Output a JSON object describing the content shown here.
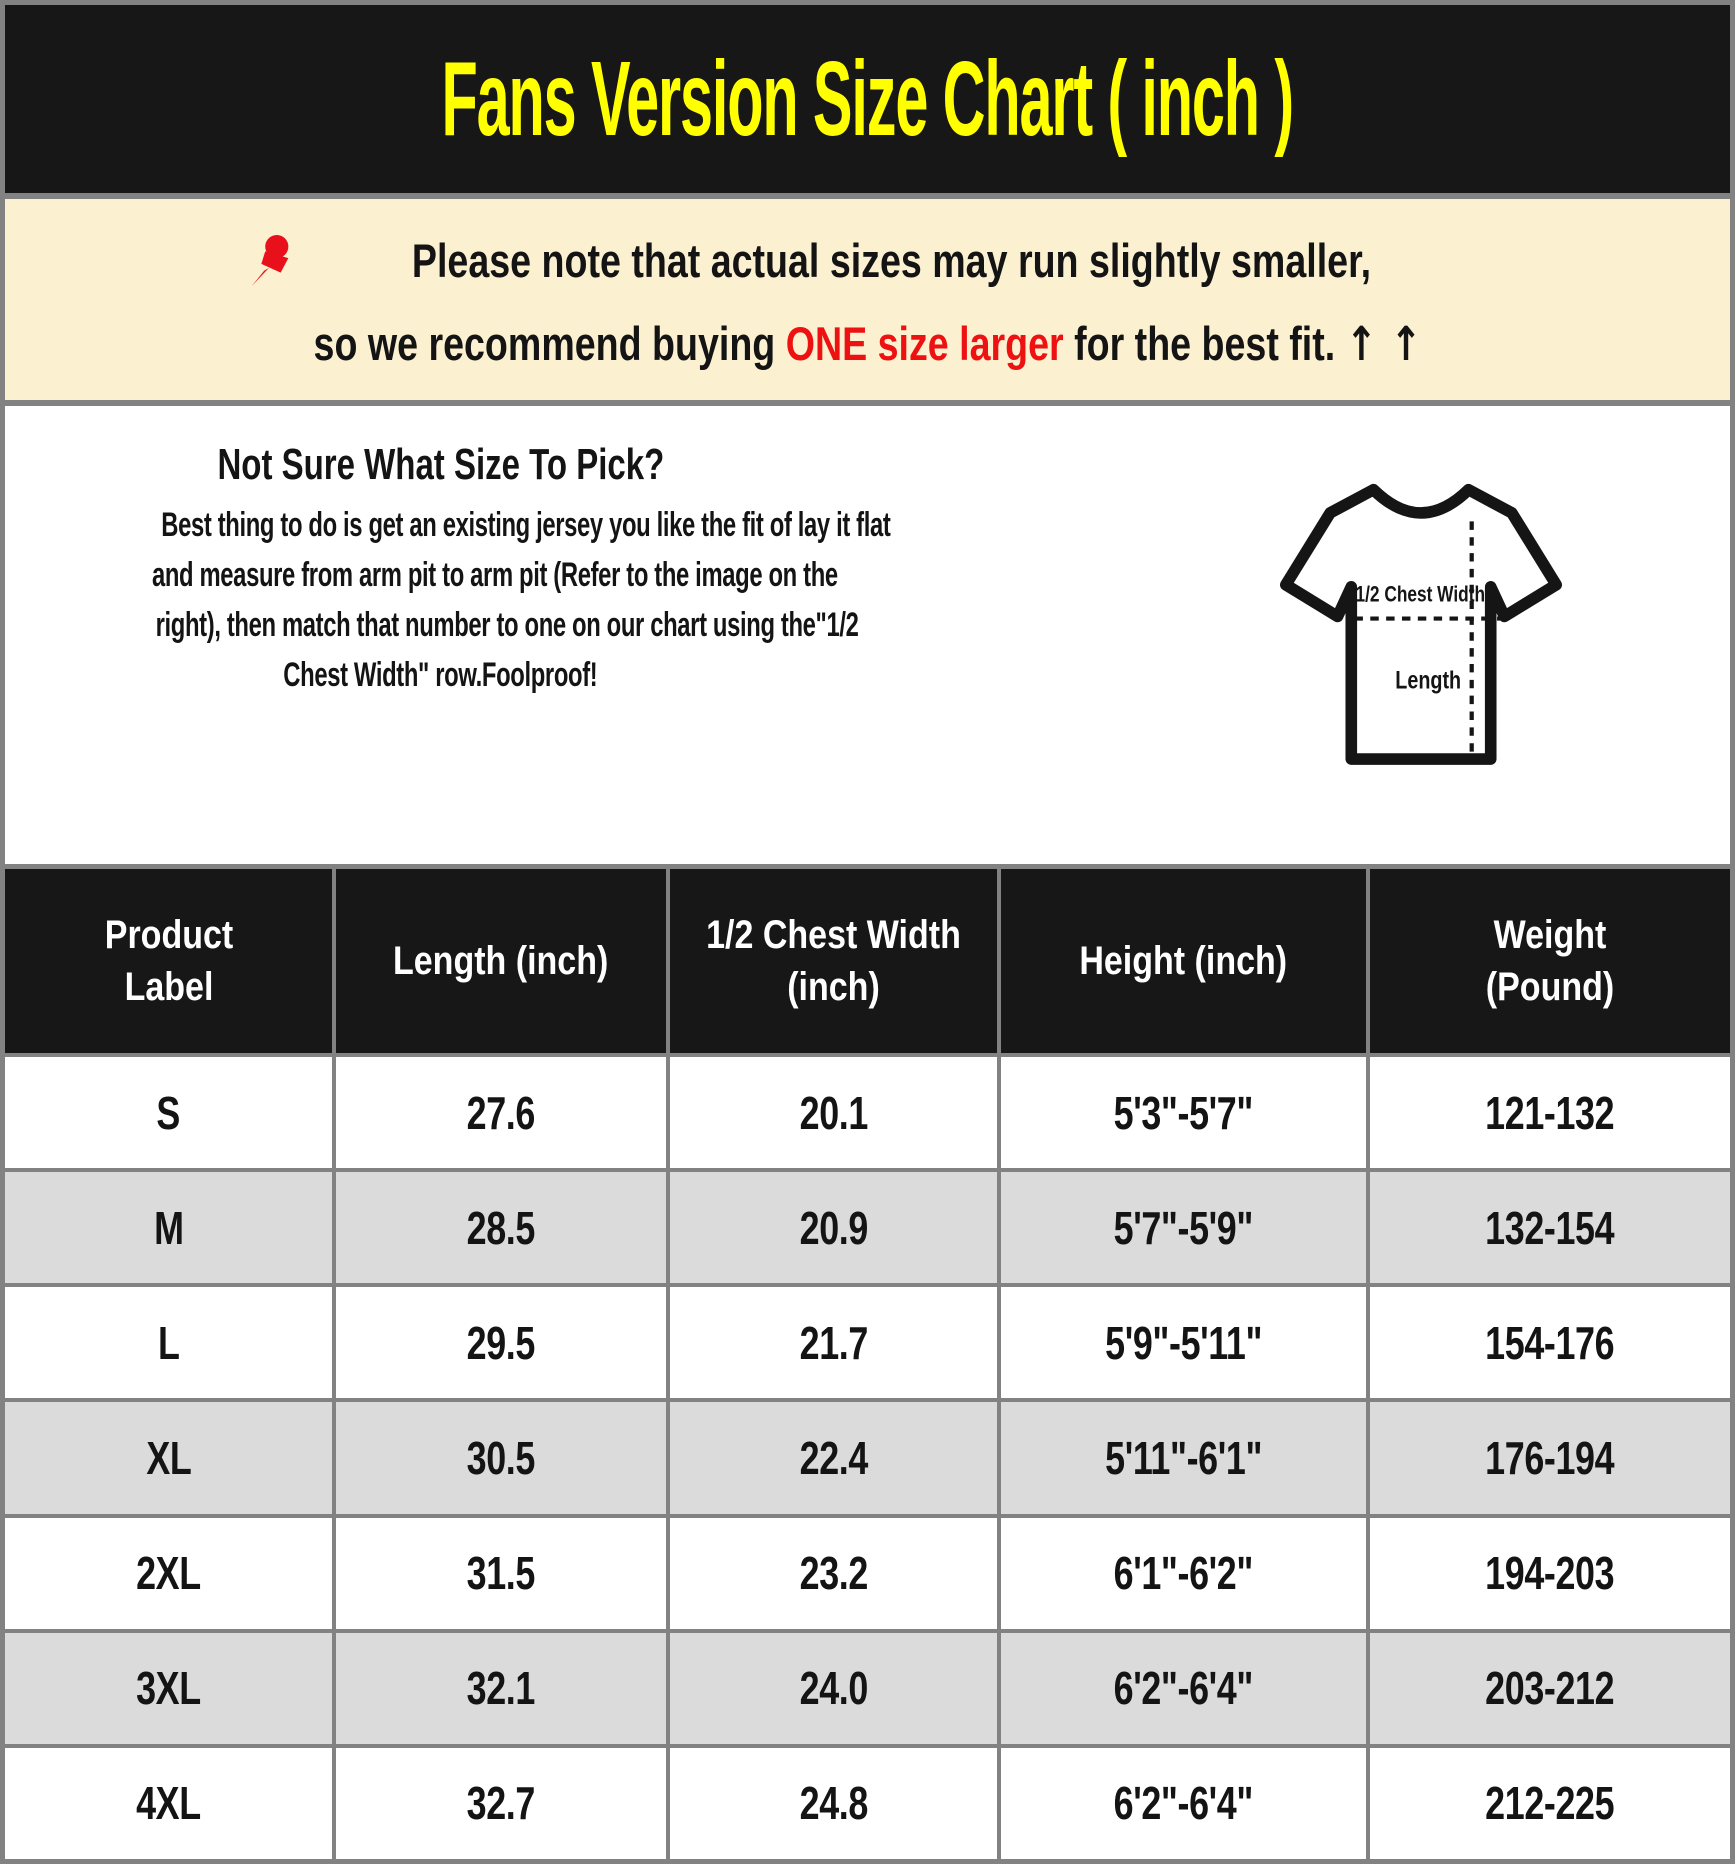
{
  "header": {
    "title": "Fans Version Size Chart ( inch )"
  },
  "notice": {
    "pin_icon": "pushpin-icon",
    "line1": "Please note that actual sizes may run slightly smaller,",
    "line2_prefix": "so we recommend buying ",
    "line2_highlight": "ONE size larger",
    "line2_suffix": " for the best fit. ",
    "arrows": "↑ ↑"
  },
  "guide": {
    "heading": "Not Sure What Size To Pick?",
    "body_lines": [
      "Best thing to do is get an existing jersey you like the fit of lay it flat",
      "and measure from arm pit to arm pit (Refer to the image on the",
      "right), then match that number to one on our chart using the\"1/2",
      "Chest Width\" row.Foolproof!"
    ],
    "diagram": {
      "chest_label": "1/2 Chest Width",
      "length_label": "Length"
    }
  },
  "size_table": {
    "columns": [
      "Product Label",
      "Length (inch)",
      "1/2 Chest Width (inch)",
      "Height (inch)",
      "Weight (Pound)"
    ],
    "rows": [
      [
        "S",
        "27.6",
        "20.1",
        "5'3\"-5'7\"",
        "121-132"
      ],
      [
        "M",
        "28.5",
        "20.9",
        "5'7\"-5'9\"",
        "132-154"
      ],
      [
        "L",
        "29.5",
        "21.7",
        "5'9\"-5'11\"",
        "154-176"
      ],
      [
        "XL",
        "30.5",
        "22.4",
        "5'11\"-6'1\"",
        "176-194"
      ],
      [
        "2XL",
        "31.5",
        "23.2",
        "6'1\"-6'2\"",
        "194-203"
      ],
      [
        "3XL",
        "32.1",
        "24.0",
        "6'2\"-6'4\"",
        "203-212"
      ],
      [
        "4XL",
        "32.7",
        "24.8",
        "6'2\"-6'4\"",
        "212-225"
      ]
    ]
  },
  "colors": {
    "header_bg": "#171717",
    "title_yellow": "#FFFF00",
    "notice_bg": "#FBF0D0",
    "accent_red": "#EE1111",
    "row_alt_gray": "#DBDBDB",
    "border_gray": "#828282",
    "text_black": "#141414"
  }
}
